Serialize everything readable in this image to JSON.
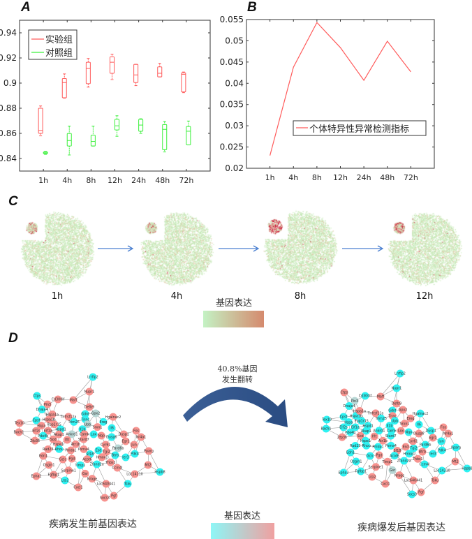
{
  "panels": {
    "a": "A",
    "b": "B",
    "c": "C",
    "d": "D"
  },
  "chart_data": [
    {
      "type": "box",
      "panel": "A",
      "categories": [
        "1h",
        "4h",
        "8h",
        "12h",
        "24h",
        "48h",
        "72h"
      ],
      "ylim": [
        0.83,
        0.95
      ],
      "xlim": [
        0,
        8
      ],
      "yticks": [
        0.84,
        0.86,
        0.88,
        0.9,
        0.92,
        0.94
      ],
      "ytick_labels": [
        "0.84",
        "0.86",
        "0.88",
        "0.9",
        "0.92",
        "0.94"
      ],
      "legend_position": "top-left",
      "series": [
        {
          "name": "实验组",
          "color": "#ff5a5a",
          "boxes": [
            {
              "whisker_low": 0.858,
              "q1": 0.86,
              "median": 0.8623,
              "q3": 0.88,
              "whisker_high": 0.8818
            },
            {
              "whisker_low": 0.888,
              "q1": 0.8883,
              "median": 0.9004,
              "q3": 0.9036,
              "whisker_high": 0.9073
            },
            {
              "whisker_low": 0.8968,
              "q1": 0.8995,
              "median": 0.9116,
              "q3": 0.9166,
              "whisker_high": 0.9196
            },
            {
              "whisker_low": 0.9028,
              "q1": 0.9078,
              "median": 0.9166,
              "q3": 0.9209,
              "whisker_high": 0.923
            },
            {
              "whisker_low": 0.898,
              "q1": 0.9004,
              "median": 0.9065,
              "q3": 0.9149,
              "whisker_high": 0.9149
            },
            {
              "whisker_low": 0.9049,
              "q1": 0.9049,
              "median": 0.9078,
              "q3": 0.9129,
              "whisker_high": 0.9157
            },
            {
              "whisker_low": 0.8924,
              "q1": 0.893,
              "median": 0.907,
              "q3": 0.9082,
              "whisker_high": 0.9088
            }
          ]
        },
        {
          "name": "对照组",
          "color": "#3cf03c",
          "boxes": [
            {
              "whisker_low": 0.8433,
              "q1": 0.8438,
              "median": 0.8445,
              "q3": 0.8452,
              "whisker_high": 0.8456
            },
            {
              "whisker_low": 0.8428,
              "q1": 0.8499,
              "median": 0.8543,
              "q3": 0.8599,
              "whisker_high": 0.8657
            },
            {
              "whisker_low": 0.8499,
              "q1": 0.8499,
              "median": 0.8536,
              "q3": 0.8586,
              "whisker_high": 0.8657
            },
            {
              "whisker_low": 0.8577,
              "q1": 0.8627,
              "median": 0.866,
              "q3": 0.8712,
              "whisker_high": 0.874
            },
            {
              "whisker_low": 0.8599,
              "q1": 0.8617,
              "median": 0.8666,
              "q3": 0.8712,
              "whisker_high": 0.8716
            },
            {
              "whisker_low": 0.8452,
              "q1": 0.847,
              "median": 0.8632,
              "q3": 0.867,
              "whisker_high": 0.8694
            },
            {
              "whisker_low": 0.8508,
              "q1": 0.8508,
              "median": 0.8617,
              "q3": 0.8655,
              "whisker_high": 0.8698
            }
          ]
        }
      ]
    },
    {
      "type": "line",
      "panel": "B",
      "categories": [
        "1h",
        "4h",
        "8h",
        "12h",
        "24h",
        "48h",
        "72h"
      ],
      "ylim": [
        0.02,
        0.055
      ],
      "xlim": [
        0,
        8
      ],
      "yticks": [
        0.02,
        0.025,
        0.03,
        0.035,
        0.04,
        0.045,
        0.05,
        0.055
      ],
      "ytick_labels": [
        "0.02",
        "0.025",
        "0.03",
        "0.035",
        "0.04",
        "0.045",
        "0.05",
        "0.055"
      ],
      "legend_position": "center-right",
      "series": [
        {
          "name": "个体特异性异常检测指标",
          "color": "#ff5a5a",
          "values": [
            0.023,
            0.0438,
            0.0543,
            0.0484,
            0.0407,
            0.0499,
            0.0427
          ]
        }
      ]
    }
  ],
  "panel_c": {
    "timepoints": [
      "1h",
      "4h",
      "8h",
      "12h"
    ],
    "legend_title": "基因表达",
    "gradient": [
      "#c4f2c4",
      "#d58a6e"
    ],
    "dot_color": "#c6e8b8",
    "high_color": "#c8102e",
    "arrow_color": "#4a7fd0"
  },
  "panel_d": {
    "turnover_text": [
      "40.8%基因",
      "发生翻转"
    ],
    "before_caption": "疾病发生前基因表达",
    "after_caption": "疾病爆发后基因表达",
    "legend_title": "基因表达",
    "gradient": [
      "#8ef6f6",
      "#f0a0a0"
    ],
    "colors": {
      "r": "#f7938f",
      "c": "#2ef2f2",
      "g": "#b7d6d4"
    },
    "nodes": [
      {
        "name": "Lrrfip2",
        "before": "c",
        "after": "c"
      },
      {
        "name": "Nupr1",
        "before": "r",
        "after": "c"
      },
      {
        "name": "Defb9",
        "before": "r",
        "after": "r"
      },
      {
        "name": "Gpx2",
        "before": "g",
        "after": "r"
      },
      {
        "name": "Maff",
        "before": "r",
        "after": "r"
      },
      {
        "name": "Cd300lf",
        "before": "r",
        "after": "c"
      },
      {
        "name": "Ctps",
        "before": "c",
        "after": "r"
      },
      {
        "name": "Pin3",
        "before": "r",
        "after": "g"
      },
      {
        "name": "Dnaja4",
        "before": "c",
        "after": "c"
      },
      {
        "name": "Cpsf",
        "before": "c",
        "after": "c"
      },
      {
        "name": "Hspa1b",
        "before": "r",
        "after": "c"
      },
      {
        "name": "Hspa1a",
        "before": "r",
        "after": "r"
      },
      {
        "name": "Tex10",
        "before": "r",
        "after": "c"
      },
      {
        "name": "Bach1",
        "before": "r",
        "after": "c"
      },
      {
        "name": "Eif2s",
        "before": "r",
        "after": "c"
      },
      {
        "name": "Hspa",
        "before": "r",
        "after": "c"
      },
      {
        "name": "Eif1a",
        "before": "r",
        "after": "c"
      },
      {
        "name": "Ppp1r15",
        "before": "r",
        "after": "c"
      },
      {
        "name": "Hspd1",
        "before": "c",
        "after": "c"
      },
      {
        "name": "Tnfrsf12a",
        "before": "r",
        "after": "r"
      },
      {
        "name": "Trim25",
        "before": "c",
        "after": "c"
      },
      {
        "name": "Gdnf",
        "before": "c",
        "after": "c"
      },
      {
        "name": "Tnnc",
        "before": "c",
        "after": "r"
      },
      {
        "name": "Upb",
        "before": "g",
        "after": "c"
      },
      {
        "name": "Srxn1",
        "before": "r",
        "after": "r"
      },
      {
        "name": "Ereg",
        "before": "c",
        "after": "r"
      },
      {
        "name": "Hgalnac2",
        "before": "r",
        "after": "c"
      },
      {
        "name": "Il6",
        "before": "c",
        "after": "c"
      },
      {
        "name": "Akap1",
        "before": "r",
        "after": "c"
      },
      {
        "name": "Ankrd1",
        "before": "g",
        "after": "c"
      },
      {
        "name": "Il1b",
        "before": "c",
        "after": "c"
      },
      {
        "name": "Pde4b",
        "before": "c",
        "after": "c"
      },
      {
        "name": "Sod",
        "before": "r",
        "after": "r"
      },
      {
        "name": "Zfp36",
        "before": "r",
        "after": "r"
      },
      {
        "name": "Hspe1",
        "before": "r",
        "after": "c"
      },
      {
        "name": "Ifit",
        "before": "r",
        "after": "r"
      },
      {
        "name": "Camk",
        "before": "r",
        "after": "c"
      },
      {
        "name": "Lox",
        "before": "c",
        "after": "r"
      },
      {
        "name": "Nqo",
        "before": "r",
        "after": "c"
      },
      {
        "name": "Dusp6",
        "before": "c",
        "after": "r"
      },
      {
        "name": "Dusp1",
        "before": "r",
        "after": "c"
      },
      {
        "name": "Fos",
        "before": "r",
        "after": "r"
      },
      {
        "name": "Nr4a1",
        "before": "r",
        "after": "r"
      },
      {
        "name": "Egr1",
        "before": "r",
        "after": "r"
      },
      {
        "name": "Stard7",
        "before": "r",
        "after": "c"
      },
      {
        "name": "Atr1b",
        "before": "r",
        "after": "r"
      },
      {
        "name": "Rad23",
        "before": "r",
        "after": "c"
      },
      {
        "name": "Rhou",
        "before": "c",
        "after": "c"
      },
      {
        "name": "Phlda1",
        "before": "r",
        "after": "c"
      },
      {
        "name": "Psma4",
        "before": "r",
        "after": "c"
      },
      {
        "name": "Sf18",
        "before": "c",
        "after": "r"
      },
      {
        "name": "Esd",
        "before": "c",
        "after": "r"
      },
      {
        "name": "Tgi2",
        "before": "r",
        "after": "c"
      },
      {
        "name": "Cyr61",
        "before": "r",
        "after": "r"
      },
      {
        "name": "Jun",
        "before": "r",
        "after": "c"
      },
      {
        "name": "Pard6b",
        "before": "g",
        "after": "c"
      },
      {
        "name": "Btrb",
        "before": "c",
        "after": "r"
      },
      {
        "name": "Ier3",
        "before": "c",
        "after": "c"
      },
      {
        "name": "Pdk4",
        "before": "c",
        "after": "c"
      },
      {
        "name": "Pparg",
        "before": "r",
        "after": "c"
      },
      {
        "name": "Edn1",
        "before": "r",
        "after": "c"
      },
      {
        "name": "Gclc",
        "before": "r",
        "after": "c"
      },
      {
        "name": "Pgd",
        "before": "r",
        "after": "r"
      },
      {
        "name": "Acot6",
        "before": "r",
        "after": "c"
      },
      {
        "name": "Hmox1",
        "before": "r",
        "after": "c"
      },
      {
        "name": "Thbs1",
        "before": "r",
        "after": "r"
      },
      {
        "name": "Osgin1",
        "before": "r",
        "after": "c"
      },
      {
        "name": "Timp1",
        "before": "c",
        "after": "r"
      },
      {
        "name": "Zfand2a",
        "before": "c",
        "after": "c"
      },
      {
        "name": "Ccm4l",
        "before": "r",
        "after": "c"
      },
      {
        "name": "Mt2",
        "before": "r",
        "after": "r"
      },
      {
        "name": "Hspb8",
        "before": "c",
        "after": "c"
      },
      {
        "name": "Serpine1",
        "before": "r",
        "after": "r"
      },
      {
        "name": "Loc14210",
        "before": "r",
        "after": "c"
      },
      {
        "name": "Epha2",
        "before": "r",
        "after": "c"
      },
      {
        "name": "Fgfbp1",
        "before": "r",
        "after": "c"
      },
      {
        "name": "Gsr",
        "before": "r",
        "after": "g"
      },
      {
        "name": "Nrage",
        "before": "r",
        "after": "r"
      },
      {
        "name": "Loc640441",
        "before": "r",
        "after": "r"
      },
      {
        "name": "Tsku",
        "before": "c",
        "after": "r"
      },
      {
        "name": "Lrp2",
        "before": "c",
        "after": "r"
      },
      {
        "name": "Cxcl1",
        "before": "r",
        "after": "r"
      },
      {
        "name": "Socs3",
        "before": "r",
        "after": "c"
      },
      {
        "name": "Pgf",
        "before": "r",
        "after": "r"
      }
    ]
  }
}
